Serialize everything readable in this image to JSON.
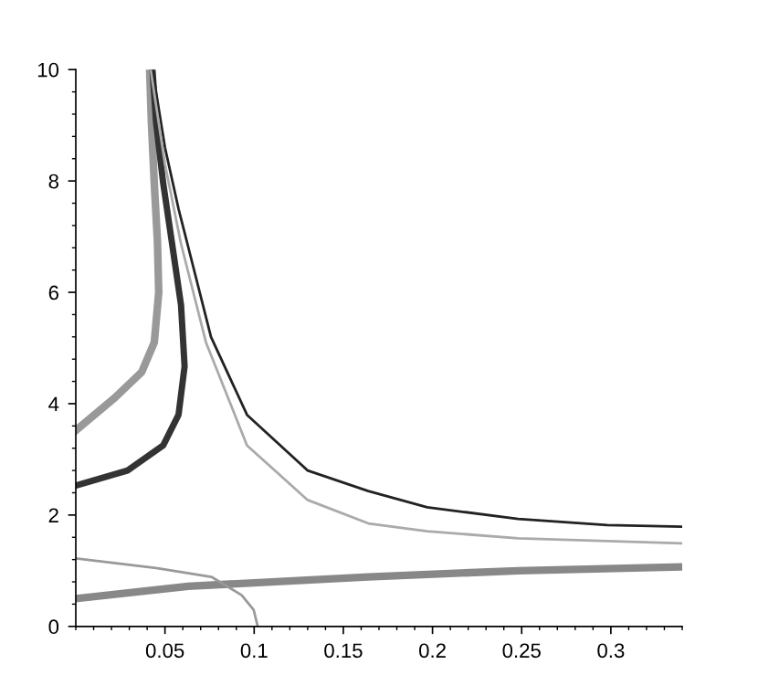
{
  "chart_data": {
    "type": "line",
    "xlim": [
      0,
      0.34
    ],
    "ylim": [
      0,
      10
    ],
    "xticks": [
      0.05,
      0.1,
      0.15,
      0.2,
      0.25,
      0.3
    ],
    "yticks": [
      0,
      2,
      4,
      6,
      8,
      10
    ],
    "grid": false,
    "legend": false,
    "marker": "none",
    "line_style": "solid",
    "series": [
      {
        "color": "#999999",
        "x": [
          0.0,
          0.022,
          0.037,
          0.044,
          0.0465,
          0.0458,
          0.044,
          0.0424,
          0.0414
        ],
        "values": [
          3.52,
          4.11,
          4.57,
          5.1,
          6.0,
          6.9,
          7.96,
          9.05,
          10
        ]
      },
      {
        "color": "#333333",
        "x": [
          0.0,
          0.029,
          0.049,
          0.0576,
          0.061,
          0.059,
          0.054,
          0.049,
          0.045,
          0.043
        ],
        "values": [
          2.53,
          2.8,
          3.25,
          3.8,
          4.67,
          5.77,
          6.87,
          7.96,
          9.05,
          10
        ]
      },
      {
        "color": "#222222",
        "x": [
          0.043,
          0.05,
          0.0576,
          0.0626,
          0.0758,
          0.096,
          0.13,
          0.164,
          0.197,
          0.248,
          0.298,
          0.34
        ],
        "values": [
          10,
          8.6,
          7.5,
          6.87,
          5.2,
          3.8,
          2.8,
          2.43,
          2.14,
          1.93,
          1.82,
          1.79
        ]
      },
      {
        "color": "#aaaaaa",
        "x": [
          0.042,
          0.05,
          0.059,
          0.073,
          0.096,
          0.13,
          0.164,
          0.197,
          0.248,
          0.34
        ],
        "values": [
          10,
          8.3,
          6.87,
          5.1,
          3.25,
          2.27,
          1.85,
          1.71,
          1.58,
          1.49
        ]
      },
      {
        "color": "#888888",
        "x": [
          0.0,
          0.063,
          0.164,
          0.248,
          0.34
        ],
        "values": [
          0.5,
          0.72,
          0.89,
          1.0,
          1.07
        ]
      },
      {
        "color": "#999999",
        "x": [
          0.0,
          0.045,
          0.076,
          0.093,
          0.0997,
          0.102
        ],
        "values": [
          1.22,
          1.05,
          0.89,
          0.56,
          0.3,
          0.0
        ]
      }
    ]
  }
}
